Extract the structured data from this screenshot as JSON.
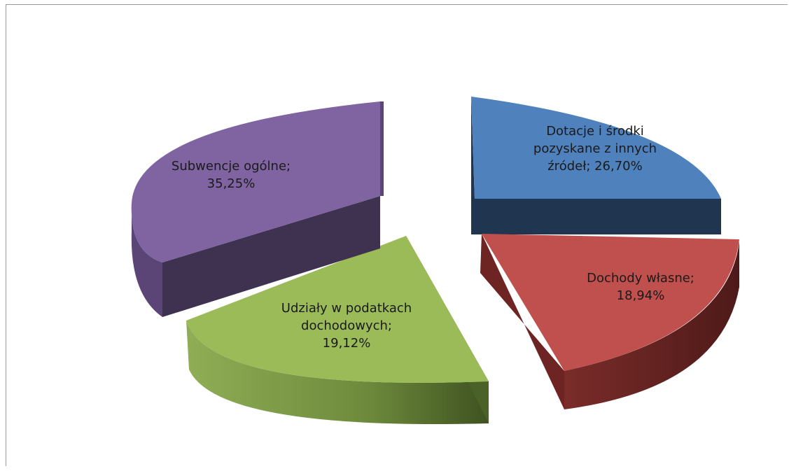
{
  "chart_data": {
    "type": "pie",
    "title": "",
    "exploded": true,
    "three_d": true,
    "slices": [
      {
        "name": "Dotacje i środki pozyskane z innych źródeł",
        "value": 26.7,
        "display": "26,70%",
        "color": "#4f81bd",
        "label_lines": [
          "Dotacje i środki",
          "pozyskane z innych",
          "źródeł; 26,70%"
        ]
      },
      {
        "name": "Dochody własne",
        "value": 18.94,
        "display": "18,94%",
        "color": "#c0504d",
        "label_lines": [
          "Dochody własne;",
          "18,94%"
        ]
      },
      {
        "name": "Udziały w podatkach dochodowych",
        "value": 19.12,
        "display": "19,12%",
        "color": "#9bbb59",
        "label_lines": [
          "Udziały w podatkach",
          "dochodowych;",
          "19,12%"
        ]
      },
      {
        "name": "Subwencje ogólne",
        "value": 35.25,
        "display": "35,25%",
        "color": "#8064a2",
        "label_lines": [
          "Subwencje ogólne;",
          "35,25%"
        ]
      }
    ]
  }
}
